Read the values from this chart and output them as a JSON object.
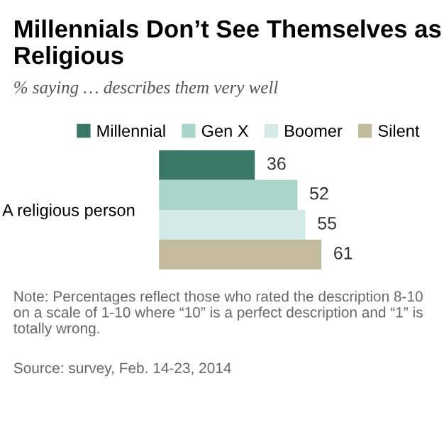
{
  "chart_data": {
    "type": "bar",
    "orientation": "horizontal",
    "title": "Millennials Don’t See Themselves as Religious",
    "subtitle": "% saying … describes them very well",
    "categories": [
      "A religious person"
    ],
    "series": [
      {
        "name": "Millennial",
        "color": "#3b7766",
        "values": [
          36
        ]
      },
      {
        "name": "Gen X",
        "color": "#a8d5c8",
        "values": [
          52
        ]
      },
      {
        "name": "Boomer",
        "color": "#d3ebe5",
        "values": [
          55
        ]
      },
      {
        "name": "Silent",
        "color": "#c3bb9d",
        "values": [
          61
        ]
      }
    ],
    "data_labels": true,
    "legend": "top",
    "grid": false,
    "tick_labels": "y",
    "annotations": [
      "Note: Percentages reflect those who rated the description 8-10 on a scale of 1-10 where “10” is a perfect description and “1” is totally wrong.",
      "Source: survey, Feb. 14-23, 2014"
    ]
  }
}
